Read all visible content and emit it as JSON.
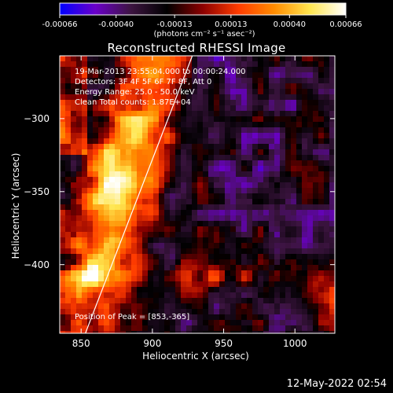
{
  "colorbar": {
    "ticks": [
      "-0.00066",
      "-0.00040",
      "-0.00013",
      "0.00013",
      "0.00040",
      "0.00066"
    ],
    "unit_label": "(photons cm⁻² s⁻¹ asec⁻²)",
    "colormap": [
      "#0000ff",
      "#6a00c8",
      "#3c1440",
      "#000000",
      "#8c0000",
      "#ff3c00",
      "#ff8c00",
      "#ffe650",
      "#ffffff"
    ]
  },
  "chart_data": {
    "type": "heatmap",
    "title": "Reconstructed RHESSI Image",
    "xlabel": "Heliocentric X (arcsec)",
    "ylabel": "Heliocentric Y (arcsec)",
    "xlim": [
      835,
      1028
    ],
    "ylim": [
      -447,
      -257
    ],
    "x_ticks": [
      850,
      900,
      950,
      1000
    ],
    "y_ticks": [
      -300,
      -350,
      -400
    ],
    "value_range": [
      -0.00066,
      0.00066
    ],
    "limb_line": [
      [
        853,
        -447
      ],
      [
        928,
        -257
      ]
    ],
    "peak_position": [
      853,
      -365
    ],
    "annotations": {
      "time_range": "19-Mar-2013 23:55:04.000 to 00:00:24.000",
      "detectors": "Detectors: 3F 4F 5F 6F 7F 8F, Att 0",
      "energy_range": "Energy Range: 25.0 - 50.0 keV",
      "clean": "Clean     Total counts: 1.87E+04",
      "peak": "Position of Peak = [853,-365]"
    }
  },
  "footer": {
    "date": "12-May-2022 02:54"
  }
}
